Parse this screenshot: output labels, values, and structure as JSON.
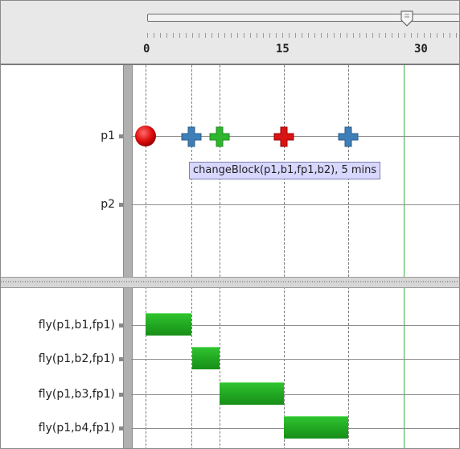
{
  "ruler": {
    "labels": [
      "0",
      "15",
      "30"
    ]
  },
  "upper_panel": {
    "rows": [
      {
        "label": "p1"
      },
      {
        "label": "p2"
      }
    ],
    "tooltip": "changeBlock(p1,b1,fp1,b2), 5 mins",
    "markers": [
      {
        "name": "start-circle-icon",
        "color": "#e01010"
      },
      {
        "name": "plus-marker-icon",
        "color": "#3f7fb8"
      },
      {
        "name": "plus-marker-icon",
        "color": "#2fb62f"
      },
      {
        "name": "plus-marker-icon",
        "color": "#d81414"
      },
      {
        "name": "plus-marker-icon",
        "color": "#3f7fb8"
      }
    ]
  },
  "lower_panel": {
    "rows": [
      {
        "label": "fly(p1,b1,fp1)"
      },
      {
        "label": "fly(p1,b2,fp1)"
      },
      {
        "label": "fly(p1,b3,fp1)"
      },
      {
        "label": "fly(p1,b4,fp1)"
      }
    ]
  },
  "colors": {
    "bar_green": "#21a521",
    "current_time_line": "#3fb33f",
    "tooltip_bg": "#d7d7ff"
  }
}
